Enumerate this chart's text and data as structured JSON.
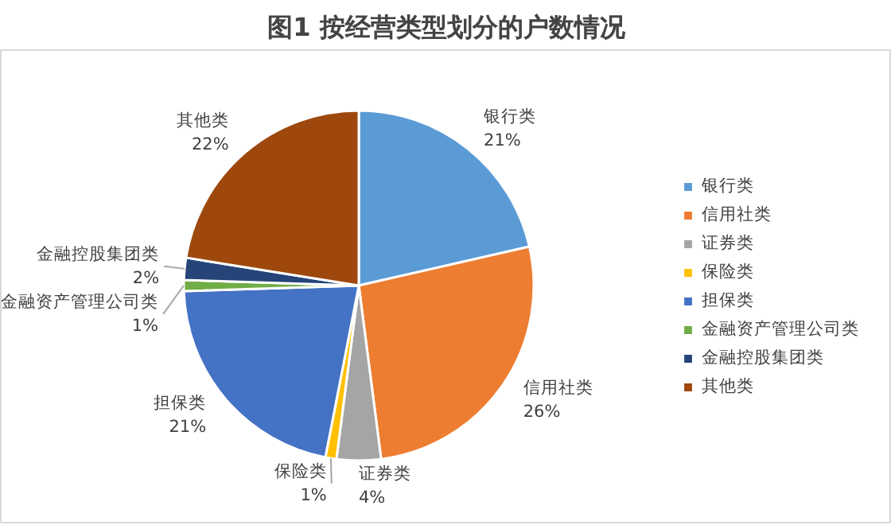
{
  "chart_data": {
    "type": "pie",
    "title": "图1 按经营类型划分的户数情况",
    "categories": [
      "银行类",
      "信用社类",
      "证券类",
      "保险类",
      "担保类",
      "金融资产管理公司类",
      "金融控股集团类",
      "其他类"
    ],
    "values": [
      21,
      26,
      4,
      1,
      21,
      1,
      2,
      22
    ],
    "colors": [
      "#5b9bd5",
      "#ed7d31",
      "#a5a5a5",
      "#ffc000",
      "#4472c4",
      "#70ad47",
      "#264478",
      "#9e480e"
    ],
    "value_labels": [
      "21%",
      "26%",
      "4%",
      "1%",
      "21%",
      "1%",
      "2%",
      "22%"
    ],
    "legend": "right"
  }
}
